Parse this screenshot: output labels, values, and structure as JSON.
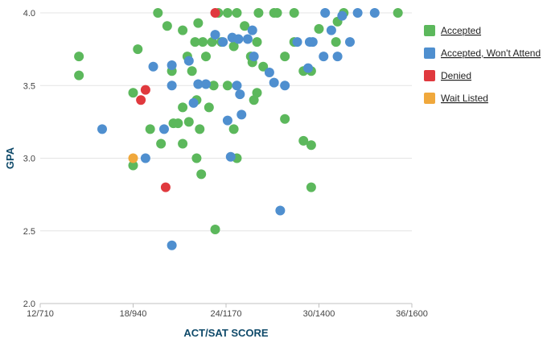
{
  "chart_data": {
    "type": "scatter",
    "title": "",
    "xlabel": "ACT/SAT SCORE",
    "ylabel": "GPA",
    "xlim": [
      12,
      36
    ],
    "ylim": [
      2.0,
      4.0
    ],
    "x_ticks": [
      {
        "value": 12,
        "label": "12/710"
      },
      {
        "value": 18,
        "label": "18/940"
      },
      {
        "value": 24,
        "label": "24/1170"
      },
      {
        "value": 30,
        "label": "30/1400"
      },
      {
        "value": 36,
        "label": "36/1600"
      }
    ],
    "y_ticks": [
      {
        "value": 2.0,
        "label": "2.0"
      },
      {
        "value": 2.5,
        "label": "2.5"
      },
      {
        "value": 3.0,
        "label": "3.0"
      },
      {
        "value": 3.5,
        "label": "3.5"
      },
      {
        "value": 4.0,
        "label": "4.0"
      }
    ],
    "grid": "horizontal",
    "legend_position": "right",
    "series": [
      {
        "name": "Accepted",
        "color": "#5cb85c",
        "points": [
          [
            14.5,
            3.7
          ],
          [
            14.5,
            3.57
          ],
          [
            18.3,
            3.75
          ],
          [
            18.0,
            3.45
          ],
          [
            18.0,
            2.95
          ],
          [
            19.1,
            3.2
          ],
          [
            19.6,
            4.0
          ],
          [
            19.8,
            3.1
          ],
          [
            20.2,
            3.91
          ],
          [
            20.5,
            3.6
          ],
          [
            20.6,
            3.24
          ],
          [
            20.9,
            3.24
          ],
          [
            21.2,
            3.88
          ],
          [
            21.2,
            3.35
          ],
          [
            21.2,
            3.1
          ],
          [
            21.5,
            3.7
          ],
          [
            21.6,
            3.25
          ],
          [
            21.8,
            3.6
          ],
          [
            22.0,
            3.8
          ],
          [
            22.2,
            3.93
          ],
          [
            22.1,
            3.4
          ],
          [
            22.1,
            3.0
          ],
          [
            22.3,
            3.2
          ],
          [
            22.4,
            2.89
          ],
          [
            22.5,
            3.8
          ],
          [
            22.7,
            3.7
          ],
          [
            22.9,
            3.35
          ],
          [
            23.1,
            3.8
          ],
          [
            23.2,
            3.5
          ],
          [
            23.5,
            4.0
          ],
          [
            23.7,
            3.8
          ],
          [
            24.1,
            4.0
          ],
          [
            24.1,
            3.5
          ],
          [
            24.5,
            3.77
          ],
          [
            24.5,
            3.2
          ],
          [
            24.7,
            3.0
          ],
          [
            24.7,
            4.0
          ],
          [
            25.2,
            3.91
          ],
          [
            25.6,
            3.7
          ],
          [
            25.7,
            3.66
          ],
          [
            25.8,
            3.4
          ],
          [
            26.0,
            3.8
          ],
          [
            26.0,
            3.45
          ],
          [
            26.1,
            4.0
          ],
          [
            26.4,
            3.63
          ],
          [
            27.1,
            4.0
          ],
          [
            27.3,
            4.0
          ],
          [
            27.8,
            3.7
          ],
          [
            27.8,
            3.27
          ],
          [
            28.4,
            4.0
          ],
          [
            28.4,
            3.8
          ],
          [
            29.0,
            3.6
          ],
          [
            29.0,
            3.12
          ],
          [
            29.5,
            3.6
          ],
          [
            29.5,
            3.09
          ],
          [
            29.5,
            2.8
          ],
          [
            30.0,
            3.89
          ],
          [
            31.1,
            3.8
          ],
          [
            31.2,
            3.94
          ],
          [
            31.6,
            4.0
          ],
          [
            35.1,
            4.0
          ],
          [
            23.3,
            2.51
          ]
        ]
      },
      {
        "name": "Accepted, Won't Attend",
        "color": "#4f8fcf",
        "points": [
          [
            16.0,
            3.2
          ],
          [
            18.8,
            3.0
          ],
          [
            19.3,
            3.63
          ],
          [
            20.0,
            3.2
          ],
          [
            20.5,
            3.64
          ],
          [
            20.5,
            3.5
          ],
          [
            20.5,
            2.4
          ],
          [
            21.6,
            3.67
          ],
          [
            21.9,
            3.38
          ],
          [
            22.2,
            3.51
          ],
          [
            22.7,
            3.51
          ],
          [
            23.3,
            3.85
          ],
          [
            23.8,
            3.8
          ],
          [
            24.1,
            3.26
          ],
          [
            24.3,
            3.01
          ],
          [
            24.4,
            3.83
          ],
          [
            24.7,
            3.5
          ],
          [
            24.8,
            3.82
          ],
          [
            24.9,
            3.44
          ],
          [
            25.0,
            3.3
          ],
          [
            25.4,
            3.82
          ],
          [
            25.7,
            3.88
          ],
          [
            25.8,
            3.7
          ],
          [
            26.8,
            3.59
          ],
          [
            27.1,
            3.52
          ],
          [
            27.5,
            2.64
          ],
          [
            27.8,
            3.5
          ],
          [
            28.6,
            3.8
          ],
          [
            29.3,
            3.62
          ],
          [
            29.4,
            3.8
          ],
          [
            29.6,
            3.8
          ],
          [
            30.3,
            3.7
          ],
          [
            30.4,
            4.0
          ],
          [
            30.8,
            3.88
          ],
          [
            31.2,
            3.7
          ],
          [
            31.5,
            3.98
          ],
          [
            32.0,
            3.8
          ],
          [
            32.5,
            4.0
          ],
          [
            33.6,
            4.0
          ]
        ]
      },
      {
        "name": "Denied",
        "color": "#e0393e",
        "points": [
          [
            18.8,
            3.47
          ],
          [
            18.5,
            3.4
          ],
          [
            20.1,
            2.8
          ],
          [
            23.3,
            4.0
          ]
        ]
      },
      {
        "name": "Wait Listed",
        "color": "#f0a83c",
        "points": [
          [
            18.0,
            3.0
          ]
        ]
      }
    ]
  }
}
